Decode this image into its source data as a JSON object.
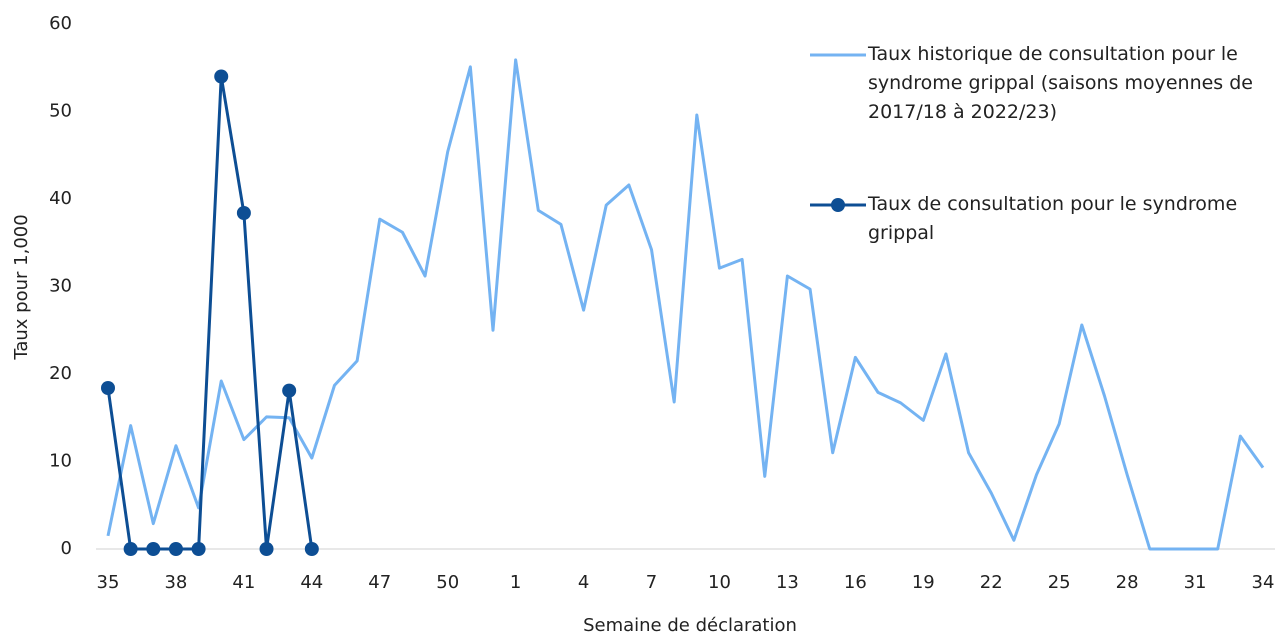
{
  "chart_data": {
    "type": "line",
    "xlabel": "Semaine de déclaration",
    "ylabel": "Taux pour 1,000",
    "categories": [
      "35",
      null,
      null,
      "38",
      null,
      null,
      "41",
      null,
      null,
      "44",
      null,
      null,
      "47",
      null,
      null,
      "50",
      null,
      null,
      "1",
      null,
      null,
      "4",
      null,
      null,
      "7",
      null,
      null,
      "10",
      null,
      null,
      "13",
      null,
      null,
      "16",
      null,
      null,
      "19",
      null,
      null,
      "22",
      null,
      null,
      "25",
      null,
      null,
      "28",
      null,
      null,
      "31",
      null,
      null,
      "34"
    ],
    "series": [
      {
        "name": "Taux historique de consultation pour le syndrome grippal (saisons moyennes de 2017/18 à 2022/23)",
        "color": "#74b3f2",
        "markers": false,
        "values": [
          1.5,
          14.1,
          2.9,
          11.8,
          4.7,
          19.2,
          12.5,
          15.1,
          15.0,
          10.4,
          18.7,
          21.5,
          37.7,
          36.2,
          31.2,
          45.4,
          55.1,
          25.0,
          55.9,
          38.7,
          37.1,
          27.3,
          39.3,
          41.6,
          34.2,
          16.8,
          49.6,
          32.1,
          33.1,
          8.3,
          31.2,
          29.7,
          11.0,
          21.9,
          17.9,
          16.7,
          14.7,
          22.3,
          11.0,
          6.4,
          1.0,
          8.5,
          14.3,
          25.6,
          17.5,
          8.5,
          0,
          0,
          0,
          0,
          12.9,
          9.3
        ]
      },
      {
        "name": "Taux de consultation pour le syndrome grippal",
        "color": "#0d4e94",
        "markers": true,
        "values": [
          18.4,
          0,
          0,
          0,
          0,
          54.0,
          38.4,
          0,
          18.1,
          0,
          null,
          null,
          null,
          null,
          null,
          null,
          null,
          null,
          null,
          null,
          null,
          null,
          null,
          null,
          null,
          null,
          null,
          null,
          null,
          null,
          null,
          null,
          null,
          null,
          null,
          null,
          null,
          null,
          null,
          null,
          null,
          null,
          null,
          null,
          null,
          null,
          null,
          null,
          null,
          null,
          null,
          null
        ]
      }
    ],
    "ylim": [
      0,
      60
    ],
    "yticks": [
      0,
      10,
      20,
      30,
      40,
      50,
      60
    ],
    "grid": false,
    "legend": "upper right"
  }
}
